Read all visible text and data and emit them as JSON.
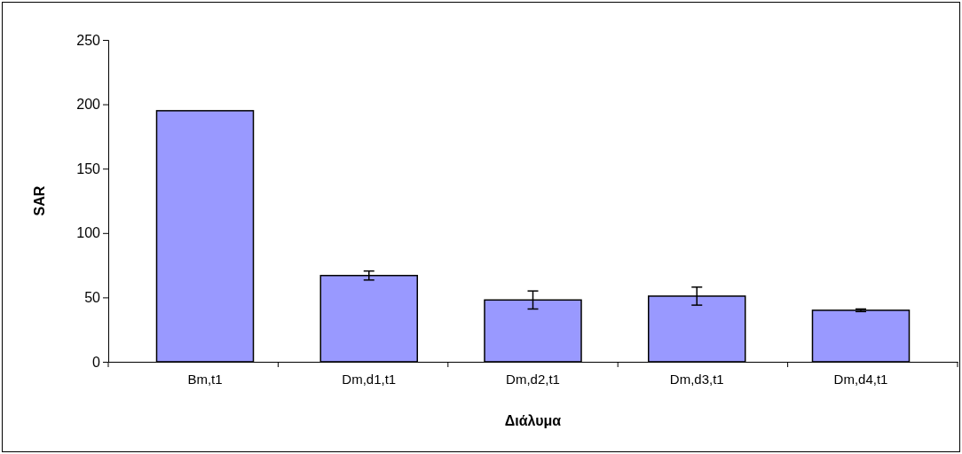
{
  "chart_data": {
    "type": "bar",
    "xlabel": "Διάλυμα",
    "ylabel": "SAR",
    "categories": [
      "Bm,t1",
      "Dm,d1,t1",
      "Dm,d2,t1",
      "Dm,d3,t1",
      "Dm,d4,t1"
    ],
    "values": [
      195,
      67,
      48,
      51,
      40
    ],
    "errors": [
      null,
      3.5,
      7,
      7,
      1
    ],
    "color": "#9999ff",
    "ylim": [
      0,
      250
    ],
    "yticks": [
      0,
      50,
      100,
      150,
      200,
      250
    ]
  }
}
